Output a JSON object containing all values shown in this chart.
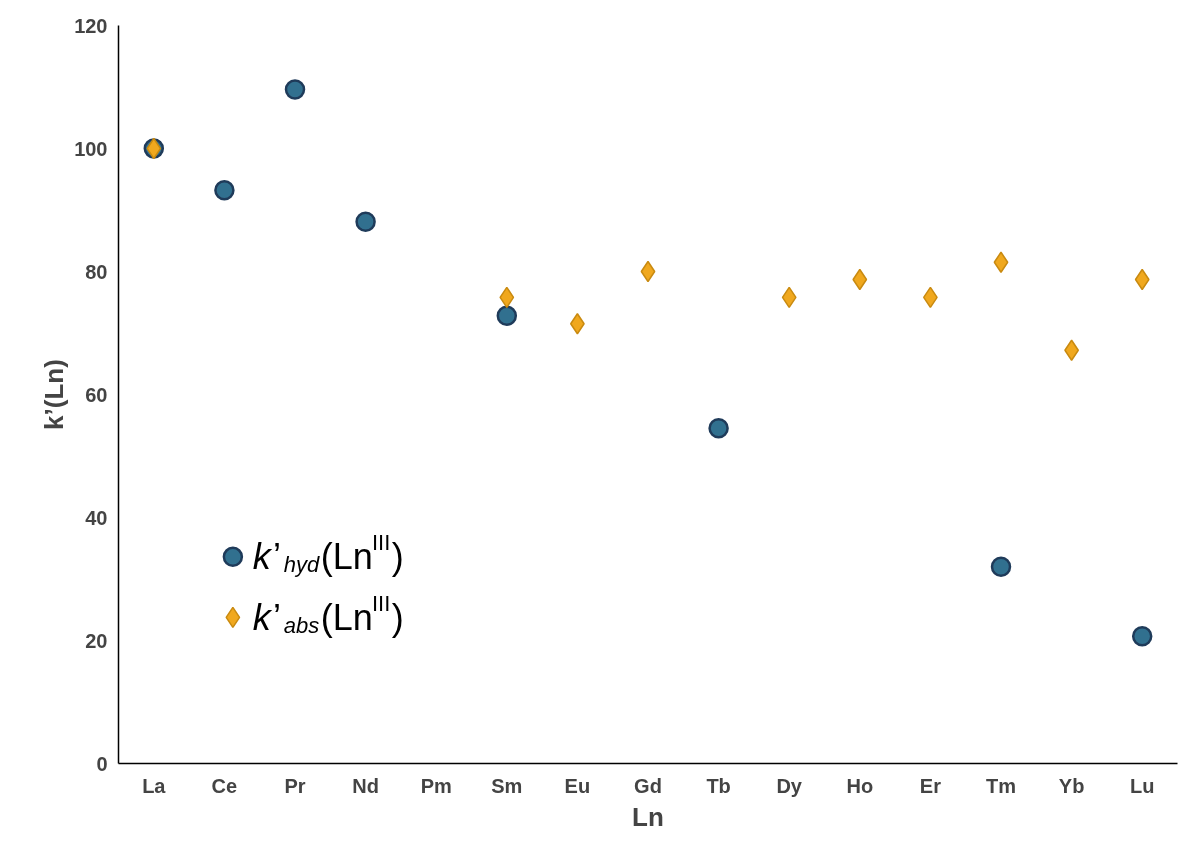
{
  "chart_data": {
    "type": "scatter",
    "xlabel": "Ln",
    "ylabel": "k’(Ln)",
    "categories": [
      "La",
      "Ce",
      "Pr",
      "Nd",
      "Pm",
      "Sm",
      "Eu",
      "Gd",
      "Tb",
      "Dy",
      "Ho",
      "Er",
      "Tm",
      "Yb",
      "Lu"
    ],
    "series": [
      {
        "name": "k’$_{hyd}$(Ln$^{III}$)",
        "color": "#31708f",
        "marker": "circle",
        "values": [
          100,
          93.2,
          109.6,
          88.1,
          null,
          72.8,
          null,
          null,
          54.5,
          null,
          null,
          null,
          32.0,
          null,
          20.7
        ]
      },
      {
        "name": "k’$_{abs}$(Ln$^{III}$)",
        "color": "#f0a81e",
        "marker": "diamond",
        "values": [
          100,
          null,
          null,
          null,
          null,
          75.8,
          71.5,
          80,
          null,
          75.8,
          78.7,
          75.8,
          81.5,
          67.2,
          78.7
        ]
      }
    ],
    "ylim": [
      0,
      120
    ],
    "yticks": [
      0,
      20,
      40,
      60,
      80,
      100,
      120
    ],
    "grid": false,
    "legend": "bottom left"
  }
}
